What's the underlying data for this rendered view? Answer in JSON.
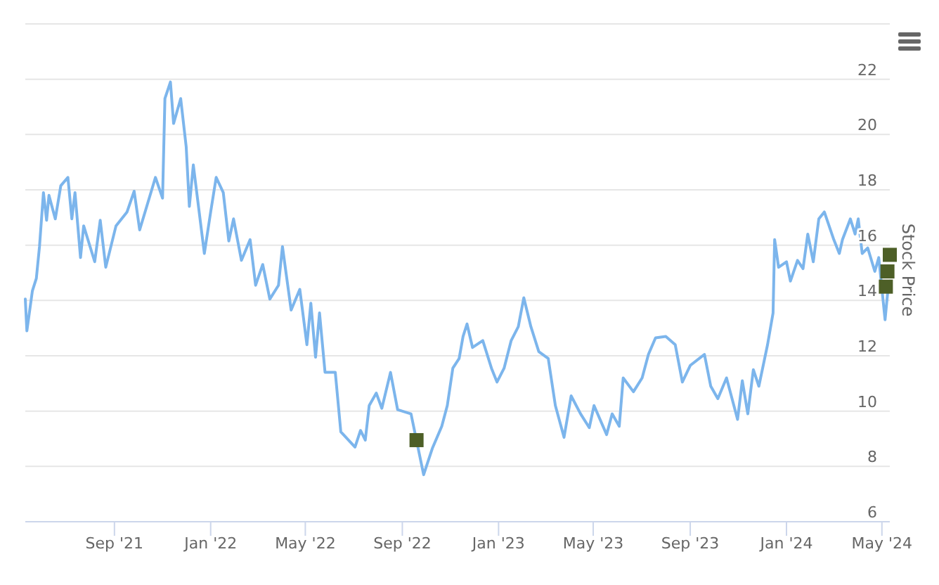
{
  "chart_data": {
    "type": "line",
    "y2label": "Stock Price",
    "xlim": [
      "2021-05-11",
      "2024-05-11"
    ],
    "xticks": [
      {
        "value": "2021-09-01",
        "label": "Sep '21"
      },
      {
        "value": "2022-01-01",
        "label": "Jan '22"
      },
      {
        "value": "2022-05-01",
        "label": "May '22"
      },
      {
        "value": "2022-09-01",
        "label": "Sep '22"
      },
      {
        "value": "2023-01-01",
        "label": "Jan '23"
      },
      {
        "value": "2023-05-01",
        "label": "May '23"
      },
      {
        "value": "2023-09-01",
        "label": "Sep '23"
      },
      {
        "value": "2024-01-01",
        "label": "Jan '24"
      },
      {
        "value": "2024-05-01",
        "label": "May '24"
      }
    ],
    "y2lim": [
      6,
      24
    ],
    "y2ticks": [
      6,
      8,
      10,
      12,
      14,
      16,
      18,
      20,
      22,
      {
        "value": 24,
        "label": null
      }
    ],
    "grid": "y",
    "series": [
      {
        "axis": "y2",
        "color": "#7cb5ec",
        "line_style": "solid",
        "x": [
          "2021-05-11",
          "2021-05-13",
          "2021-05-20",
          "2021-05-25",
          "2021-05-29",
          "2021-06-03",
          "2021-06-07",
          "2021-06-10",
          "2021-06-18",
          "2021-06-25",
          "2021-07-04",
          "2021-07-09",
          "2021-07-13",
          "2021-07-20",
          "2021-07-24",
          "2021-08-07",
          "2021-08-14",
          "2021-08-21",
          "2021-09-03",
          "2021-09-17",
          "2021-09-26",
          "2021-10-03",
          "2021-10-23",
          "2021-11-01",
          "2021-11-04",
          "2021-11-11",
          "2021-11-15",
          "2021-11-24",
          "2021-12-01",
          "2021-12-05",
          "2021-12-10",
          "2021-12-24",
          "2022-01-01",
          "2022-01-08",
          "2022-01-17",
          "2022-01-24",
          "2022-01-30",
          "2022-02-09",
          "2022-02-20",
          "2022-02-27",
          "2022-03-08",
          "2022-03-17",
          "2022-03-28",
          "2022-04-02",
          "2022-04-13",
          "2022-04-24",
          "2022-05-03",
          "2022-05-08",
          "2022-05-14",
          "2022-05-19",
          "2022-05-26",
          "2022-06-08",
          "2022-06-15",
          "2022-07-03",
          "2022-07-10",
          "2022-07-16",
          "2022-07-21",
          "2022-07-30",
          "2022-08-06",
          "2022-08-17",
          "2022-08-26",
          "2022-09-12",
          "2022-09-28",
          "2022-10-09",
          "2022-10-21",
          "2022-10-28",
          "2022-11-04",
          "2022-11-12",
          "2022-11-17",
          "2022-11-22",
          "2022-11-29",
          "2022-12-12",
          "2022-12-23",
          "2022-12-30",
          "2023-01-08",
          "2023-01-17",
          "2023-01-26",
          "2023-02-02",
          "2023-02-11",
          "2023-02-21",
          "2023-03-05",
          "2023-03-14",
          "2023-03-25",
          "2023-04-03",
          "2023-04-15",
          "2023-04-26",
          "2023-05-02",
          "2023-05-18",
          "2023-05-25",
          "2023-06-03",
          "2023-06-08",
          "2023-06-21",
          "2023-07-02",
          "2023-07-10",
          "2023-07-19",
          "2023-08-01",
          "2023-08-13",
          "2023-08-22",
          "2023-09-01",
          "2023-09-19",
          "2023-09-27",
          "2023-10-06",
          "2023-10-17",
          "2023-10-31",
          "2023-11-06",
          "2023-11-13",
          "2023-11-20",
          "2023-11-27",
          "2023-12-08",
          "2023-12-15",
          "2023-12-17",
          "2023-12-22",
          "2024-01-01",
          "2024-01-06",
          "2024-01-15",
          "2024-01-22",
          "2024-01-28",
          "2024-02-04",
          "2024-02-11",
          "2024-02-18",
          "2024-03-01",
          "2024-03-08",
          "2024-03-12",
          "2024-03-22",
          "2024-03-28",
          "2024-04-01",
          "2024-04-06",
          "2024-04-13",
          "2024-04-22",
          "2024-04-27",
          "2024-05-05",
          "2024-05-08",
          "2024-05-11"
        ],
        "values": [
          14.05,
          12.9,
          14.35,
          14.8,
          15.95,
          17.9,
          16.9,
          17.8,
          16.95,
          18.15,
          18.45,
          16.95,
          17.9,
          15.55,
          16.7,
          15.4,
          16.9,
          15.2,
          16.7,
          17.2,
          17.95,
          16.55,
          18.45,
          17.7,
          21.3,
          21.9,
          20.4,
          21.3,
          19.55,
          17.4,
          18.9,
          15.7,
          17.2,
          18.45,
          17.9,
          16.15,
          16.95,
          15.45,
          16.2,
          14.55,
          15.3,
          14.05,
          14.55,
          15.95,
          13.65,
          14.4,
          12.4,
          13.9,
          11.95,
          13.55,
          11.4,
          11.4,
          9.25,
          8.7,
          9.3,
          8.95,
          10.2,
          10.65,
          10.1,
          11.4,
          10.05,
          9.9,
          7.7,
          8.65,
          9.45,
          10.2,
          11.55,
          11.9,
          12.7,
          13.15,
          12.3,
          12.55,
          11.55,
          11.05,
          11.55,
          12.55,
          13.05,
          14.1,
          13.05,
          12.15,
          11.9,
          10.2,
          9.05,
          10.55,
          9.9,
          9.4,
          10.2,
          9.15,
          9.9,
          9.45,
          11.2,
          10.7,
          11.2,
          12.05,
          12.65,
          12.7,
          12.4,
          11.05,
          11.65,
          12.05,
          10.9,
          10.45,
          11.2,
          9.7,
          11.1,
          9.9,
          11.5,
          10.9,
          12.4,
          13.55,
          16.2,
          15.2,
          15.4,
          14.7,
          15.45,
          15.15,
          16.4,
          15.4,
          16.95,
          17.2,
          16.2,
          15.7,
          16.2,
          16.95,
          16.4,
          16.95,
          15.7,
          15.9,
          15.05,
          15.55,
          13.3,
          14.2,
          14.7
        ]
      },
      {
        "type": "scatter",
        "axis": "y2",
        "color": "#4d5f27",
        "marker": "square",
        "x": [
          "2022-09-19",
          "2024-05-06",
          "2024-05-08",
          "2024-05-11"
        ],
        "values": [
          8.95,
          14.5,
          15.05,
          15.65
        ]
      }
    ]
  }
}
